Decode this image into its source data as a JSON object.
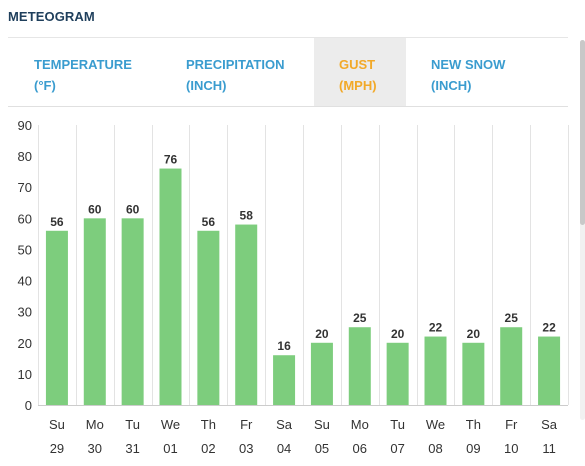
{
  "header": {
    "title": "METEOGRAM"
  },
  "tabs": [
    {
      "line1": "TEMPERATURE",
      "line2": "(°F)",
      "active": false
    },
    {
      "line1": "PRECIPITATION",
      "line2": "(INCH)",
      "active": false
    },
    {
      "line1": "GUST",
      "line2": "(MPH)",
      "active": true
    },
    {
      "line1": "NEW SNOW",
      "line2": "(INCH)",
      "active": false
    }
  ],
  "colors": {
    "bar": "#7dcd7d",
    "active_tab": "#f2a928",
    "tab": "#3a9ccf",
    "title": "#1f3f5c"
  },
  "chart_data": {
    "type": "bar",
    "categories": [
      {
        "day": "Su",
        "date": "29"
      },
      {
        "day": "Mo",
        "date": "30"
      },
      {
        "day": "Tu",
        "date": "31"
      },
      {
        "day": "We",
        "date": "01"
      },
      {
        "day": "Th",
        "date": "02"
      },
      {
        "day": "Fr",
        "date": "03"
      },
      {
        "day": "Sa",
        "date": "04"
      },
      {
        "day": "Su",
        "date": "05"
      },
      {
        "day": "Mo",
        "date": "06"
      },
      {
        "day": "Tu",
        "date": "07"
      },
      {
        "day": "We",
        "date": "08"
      },
      {
        "day": "Th",
        "date": "09"
      },
      {
        "day": "Fr",
        "date": "10"
      },
      {
        "day": "Sa",
        "date": "11"
      }
    ],
    "values": [
      56,
      60,
      60,
      76,
      56,
      58,
      16,
      20,
      25,
      20,
      22,
      20,
      25,
      22
    ],
    "ylim": [
      0,
      90
    ],
    "yticks": [
      0,
      10,
      20,
      30,
      40,
      50,
      60,
      70,
      80,
      90
    ],
    "grid": "vertical",
    "data_labels": true
  }
}
